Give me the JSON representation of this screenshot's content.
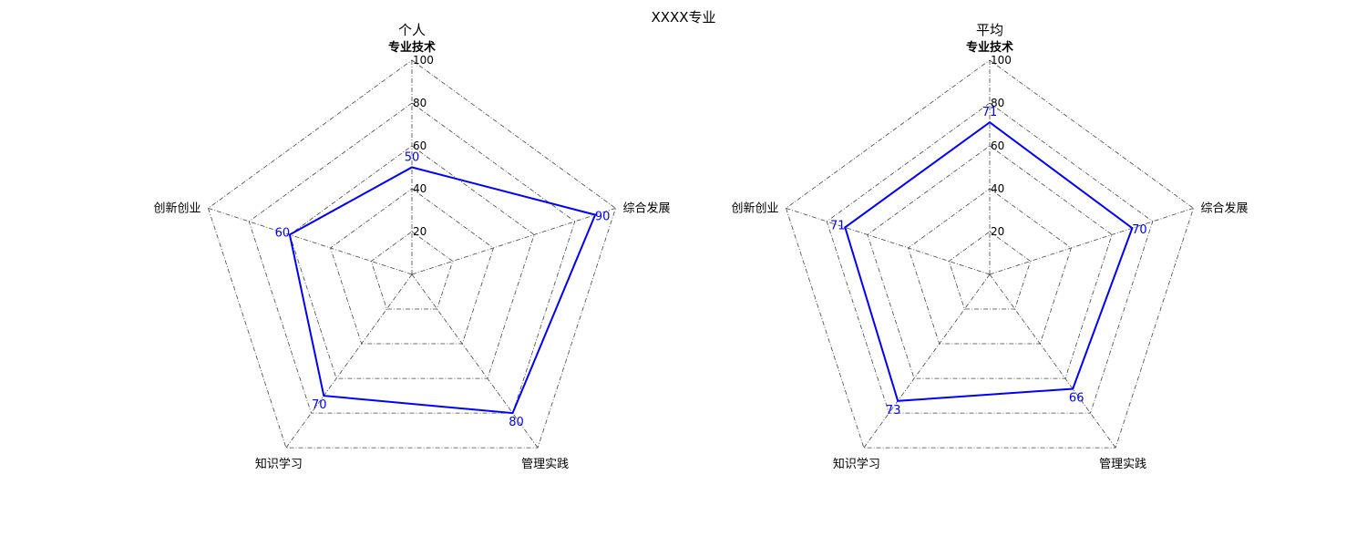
{
  "figure": {
    "title": "XXXX专业"
  },
  "chart_data": [
    {
      "type": "radar",
      "title": "个人",
      "axes": [
        "专业技术",
        "综合发展",
        "管理实践",
        "知识学习",
        "创新创业"
      ],
      "rlim": [
        0,
        100
      ],
      "ticks": [
        "20",
        "40",
        "60",
        "80",
        "100"
      ],
      "series": [
        {
          "values": [
            50,
            90,
            80,
            70,
            60
          ],
          "color": "#0000ff"
        }
      ]
    },
    {
      "type": "radar",
      "title": "平均",
      "axes": [
        "专业技术",
        "综合发展",
        "管理实践",
        "知识学习",
        "创新创业"
      ],
      "rlim": [
        0,
        100
      ],
      "ticks": [
        "20",
        "40",
        "60",
        "80",
        "100"
      ],
      "series": [
        {
          "values": [
            71,
            70,
            66,
            73,
            71
          ],
          "color": "#0000ff"
        }
      ]
    }
  ]
}
